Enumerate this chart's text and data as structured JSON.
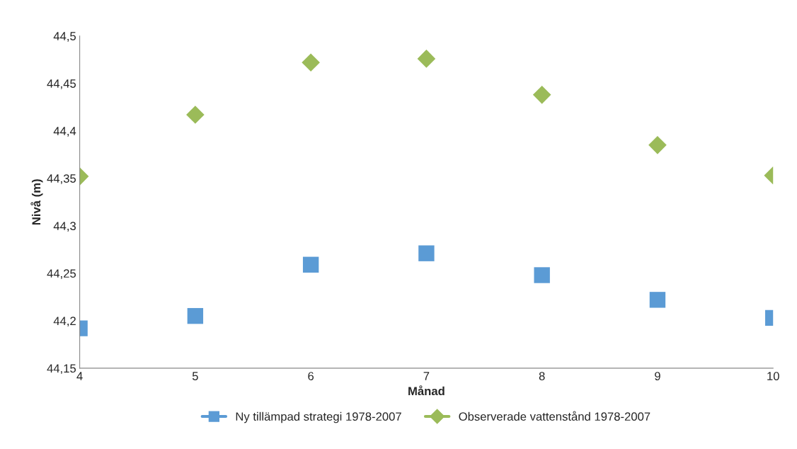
{
  "chart_data": {
    "type": "scatter",
    "xlabel": "Månad",
    "ylabel": "Nivå (m)",
    "x": [
      4,
      5,
      6,
      7,
      8,
      9,
      10
    ],
    "series": [
      {
        "name": "Ny tillämpad strategi 1978-2007",
        "color": "#5b9bd5",
        "marker": "square",
        "values": [
          44.192,
          44.205,
          44.259,
          44.271,
          44.248,
          44.222,
          44.203
        ]
      },
      {
        "name": "Observerade vattenstånd 1978-2007",
        "color": "#9bbb59",
        "marker": "diamond",
        "values": [
          44.352,
          44.417,
          44.472,
          44.476,
          44.438,
          44.385,
          44.353
        ]
      }
    ],
    "xlim": [
      4,
      10
    ],
    "xticks": [
      4,
      5,
      6,
      7,
      8,
      9,
      10
    ],
    "ylim": [
      44.15,
      44.5
    ],
    "yticks": [
      {
        "value": 44.15,
        "label": "44,15"
      },
      {
        "value": 44.2,
        "label": "44,2"
      },
      {
        "value": 44.25,
        "label": "44,25"
      },
      {
        "value": 44.3,
        "label": "44,3"
      },
      {
        "value": 44.35,
        "label": "44,35"
      },
      {
        "value": 44.4,
        "label": "44,4"
      },
      {
        "value": 44.45,
        "label": "44,45"
      },
      {
        "value": 44.5,
        "label": "44,5"
      }
    ],
    "grid": false,
    "legend": "bottom"
  }
}
